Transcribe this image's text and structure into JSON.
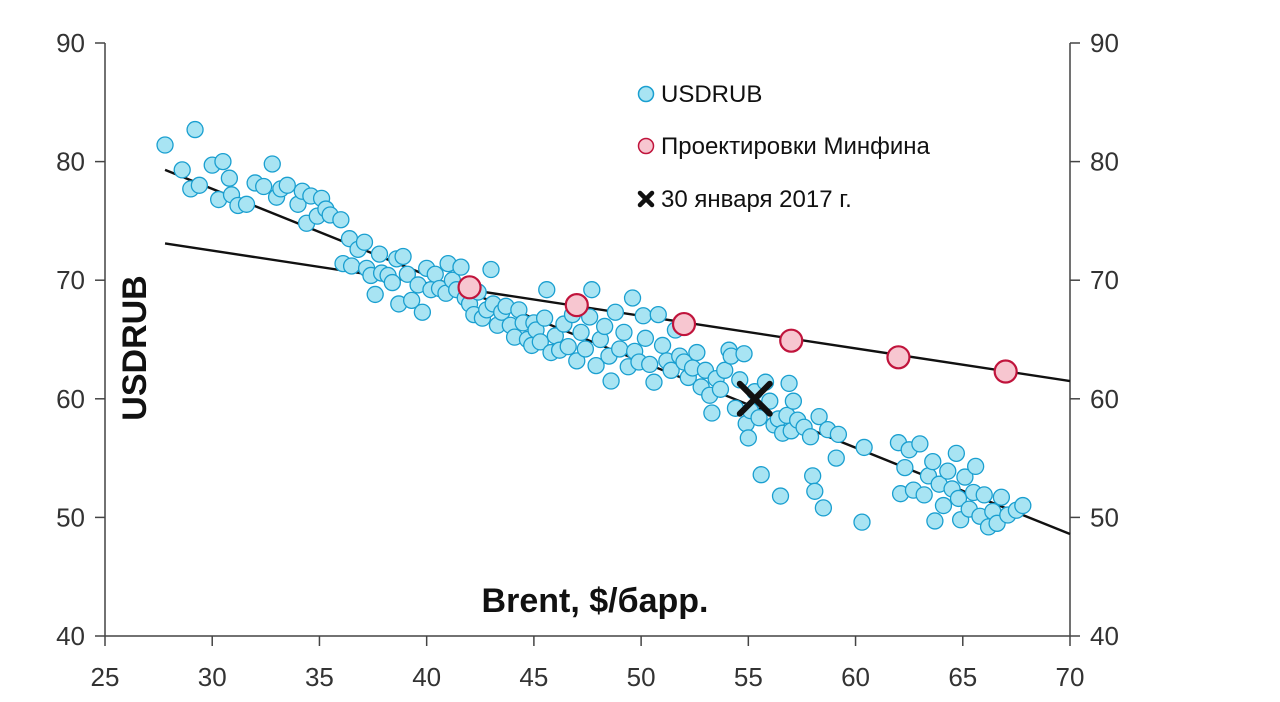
{
  "chart_data": {
    "type": "scatter",
    "xlabel": "Brent, $/барр.",
    "ylabel": "USDRUB",
    "xlim": [
      25,
      70
    ],
    "ylim": [
      40,
      90
    ],
    "x_ticks": [
      "25",
      "30",
      "35",
      "40",
      "45",
      "50",
      "55",
      "60",
      "65",
      "70"
    ],
    "y_ticks": [
      "40",
      "50",
      "60",
      "70",
      "80",
      "90"
    ],
    "y2_ticks": [
      "40",
      "50",
      "60",
      "70",
      "80",
      "90"
    ],
    "grid": false,
    "legend_position": "top-center",
    "series": [
      {
        "name": "USDRUB",
        "kind": "points",
        "color": "#a8e4f3",
        "stroke": "#1a9fd0",
        "points": [
          [
            27.8,
            81.4
          ],
          [
            28.6,
            79.3
          ],
          [
            29.2,
            82.7
          ],
          [
            29.0,
            77.7
          ],
          [
            29.4,
            78.0
          ],
          [
            30.0,
            79.7
          ],
          [
            30.5,
            80.0
          ],
          [
            30.8,
            78.6
          ],
          [
            30.3,
            76.8
          ],
          [
            30.9,
            77.2
          ],
          [
            31.2,
            76.3
          ],
          [
            31.6,
            76.4
          ],
          [
            32.0,
            78.2
          ],
          [
            32.4,
            77.9
          ],
          [
            32.8,
            79.8
          ],
          [
            33.0,
            77.0
          ],
          [
            33.2,
            77.7
          ],
          [
            33.5,
            78.0
          ],
          [
            34.0,
            76.4
          ],
          [
            34.2,
            77.5
          ],
          [
            34.4,
            74.8
          ],
          [
            34.6,
            77.1
          ],
          [
            34.9,
            75.4
          ],
          [
            35.1,
            76.9
          ],
          [
            35.3,
            76.0
          ],
          [
            35.5,
            75.5
          ],
          [
            36.0,
            75.1
          ],
          [
            36.1,
            71.4
          ],
          [
            36.4,
            73.5
          ],
          [
            36.5,
            71.2
          ],
          [
            36.8,
            72.6
          ],
          [
            37.1,
            73.2
          ],
          [
            37.2,
            71.0
          ],
          [
            37.4,
            70.4
          ],
          [
            37.6,
            68.8
          ],
          [
            37.8,
            72.2
          ],
          [
            37.9,
            70.6
          ],
          [
            38.2,
            70.4
          ],
          [
            38.4,
            69.8
          ],
          [
            38.6,
            71.8
          ],
          [
            38.7,
            68.0
          ],
          [
            38.9,
            72.0
          ],
          [
            39.1,
            70.5
          ],
          [
            39.3,
            68.3
          ],
          [
            39.6,
            69.6
          ],
          [
            39.8,
            67.3
          ],
          [
            40.0,
            71.0
          ],
          [
            40.2,
            69.2
          ],
          [
            40.4,
            70.5
          ],
          [
            40.6,
            69.3
          ],
          [
            40.9,
            68.9
          ],
          [
            41.0,
            71.4
          ],
          [
            41.2,
            70.0
          ],
          [
            41.4,
            69.2
          ],
          [
            41.6,
            71.1
          ],
          [
            41.8,
            68.5
          ],
          [
            42.0,
            68.0
          ],
          [
            42.2,
            67.1
          ],
          [
            42.4,
            69.0
          ],
          [
            42.6,
            66.8
          ],
          [
            42.8,
            67.5
          ],
          [
            43.0,
            70.9
          ],
          [
            43.1,
            68.0
          ],
          [
            43.3,
            66.2
          ],
          [
            43.5,
            67.3
          ],
          [
            43.7,
            67.8
          ],
          [
            43.9,
            66.2
          ],
          [
            44.1,
            65.2
          ],
          [
            44.3,
            67.5
          ],
          [
            44.5,
            66.4
          ],
          [
            44.7,
            65.0
          ],
          [
            44.9,
            64.5
          ],
          [
            45.0,
            66.4
          ],
          [
            45.1,
            65.8
          ],
          [
            45.3,
            64.8
          ],
          [
            45.5,
            66.8
          ],
          [
            45.6,
            69.2
          ],
          [
            45.8,
            63.9
          ],
          [
            46.0,
            65.3
          ],
          [
            46.2,
            64.1
          ],
          [
            46.4,
            66.3
          ],
          [
            46.6,
            64.4
          ],
          [
            46.8,
            67.1
          ],
          [
            47.0,
            63.2
          ],
          [
            47.2,
            65.6
          ],
          [
            47.4,
            64.2
          ],
          [
            47.6,
            66.9
          ],
          [
            47.7,
            69.2
          ],
          [
            47.9,
            62.8
          ],
          [
            48.1,
            65.0
          ],
          [
            48.3,
            66.1
          ],
          [
            48.5,
            63.6
          ],
          [
            48.6,
            61.5
          ],
          [
            48.8,
            67.3
          ],
          [
            49.0,
            64.2
          ],
          [
            49.2,
            65.6
          ],
          [
            49.4,
            62.7
          ],
          [
            49.6,
            68.5
          ],
          [
            49.7,
            64.0
          ],
          [
            49.9,
            63.1
          ],
          [
            50.1,
            67.0
          ],
          [
            50.2,
            65.1
          ],
          [
            50.4,
            62.9
          ],
          [
            50.6,
            61.4
          ],
          [
            50.8,
            67.1
          ],
          [
            51.0,
            64.5
          ],
          [
            51.2,
            63.2
          ],
          [
            51.4,
            62.4
          ],
          [
            51.6,
            65.8
          ],
          [
            51.8,
            63.6
          ],
          [
            52.0,
            63.1
          ],
          [
            52.2,
            61.8
          ],
          [
            52.4,
            62.6
          ],
          [
            52.6,
            63.9
          ],
          [
            52.8,
            61.0
          ],
          [
            53.0,
            62.4
          ],
          [
            53.2,
            60.3
          ],
          [
            53.3,
            58.8
          ],
          [
            53.5,
            61.7
          ],
          [
            53.7,
            60.8
          ],
          [
            53.9,
            62.4
          ],
          [
            54.1,
            64.1
          ],
          [
            54.2,
            63.6
          ],
          [
            54.4,
            59.2
          ],
          [
            54.6,
            61.6
          ],
          [
            54.8,
            63.8
          ],
          [
            54.9,
            57.9
          ],
          [
            55.1,
            59.0
          ],
          [
            55.0,
            56.7
          ],
          [
            55.3,
            60.6
          ],
          [
            55.5,
            58.4
          ],
          [
            55.6,
            53.6
          ],
          [
            55.8,
            61.4
          ],
          [
            56.0,
            59.8
          ],
          [
            56.2,
            57.8
          ],
          [
            56.4,
            58.3
          ],
          [
            56.5,
            51.8
          ],
          [
            56.6,
            57.1
          ],
          [
            56.8,
            58.6
          ],
          [
            56.9,
            61.3
          ],
          [
            57.0,
            57.3
          ],
          [
            57.1,
            59.8
          ],
          [
            57.3,
            58.2
          ],
          [
            57.6,
            57.6
          ],
          [
            57.9,
            56.8
          ],
          [
            58.0,
            53.5
          ],
          [
            58.1,
            52.2
          ],
          [
            58.3,
            58.5
          ],
          [
            58.5,
            50.8
          ],
          [
            58.7,
            57.4
          ],
          [
            59.1,
            55.0
          ],
          [
            59.2,
            57.0
          ],
          [
            60.3,
            49.6
          ],
          [
            60.4,
            55.9
          ],
          [
            62.0,
            56.3
          ],
          [
            62.1,
            52.0
          ],
          [
            62.3,
            54.2
          ],
          [
            62.5,
            55.7
          ],
          [
            62.7,
            52.3
          ],
          [
            63.0,
            56.2
          ],
          [
            63.2,
            51.9
          ],
          [
            63.4,
            53.5
          ],
          [
            63.6,
            54.7
          ],
          [
            63.7,
            49.7
          ],
          [
            63.9,
            52.8
          ],
          [
            64.1,
            51.0
          ],
          [
            64.3,
            53.9
          ],
          [
            64.5,
            52.4
          ],
          [
            64.7,
            55.4
          ],
          [
            64.8,
            51.6
          ],
          [
            64.9,
            49.8
          ],
          [
            65.1,
            53.4
          ],
          [
            65.3,
            50.7
          ],
          [
            65.5,
            52.1
          ],
          [
            65.6,
            54.3
          ],
          [
            65.8,
            50.1
          ],
          [
            66.0,
            51.9
          ],
          [
            66.2,
            49.2
          ],
          [
            66.4,
            50.5
          ],
          [
            66.6,
            49.5
          ],
          [
            66.8,
            51.7
          ],
          [
            67.1,
            50.2
          ],
          [
            67.5,
            50.6
          ],
          [
            67.8,
            51.0
          ]
        ]
      },
      {
        "name": "Проектировки Минфина",
        "kind": "points",
        "color": "#f7c6d0",
        "stroke": "#c0143c",
        "points": [
          [
            42,
            69.4
          ],
          [
            47,
            67.9
          ],
          [
            52,
            66.3
          ],
          [
            57,
            64.9
          ],
          [
            62,
            63.5
          ],
          [
            67,
            62.3
          ]
        ]
      },
      {
        "name": "30 января 2017 г.",
        "kind": "marker",
        "color": "#111111",
        "points": [
          [
            55.3,
            60.0
          ]
        ]
      }
    ],
    "lines": [
      {
        "kind": "trend",
        "color": "#111111",
        "x": [
          27.8,
          70
        ],
        "y": [
          79.3,
          48.6
        ]
      },
      {
        "kind": "trend",
        "color": "#111111",
        "x": [
          27.8,
          70
        ],
        "y": [
          73.1,
          61.5
        ]
      }
    ]
  }
}
